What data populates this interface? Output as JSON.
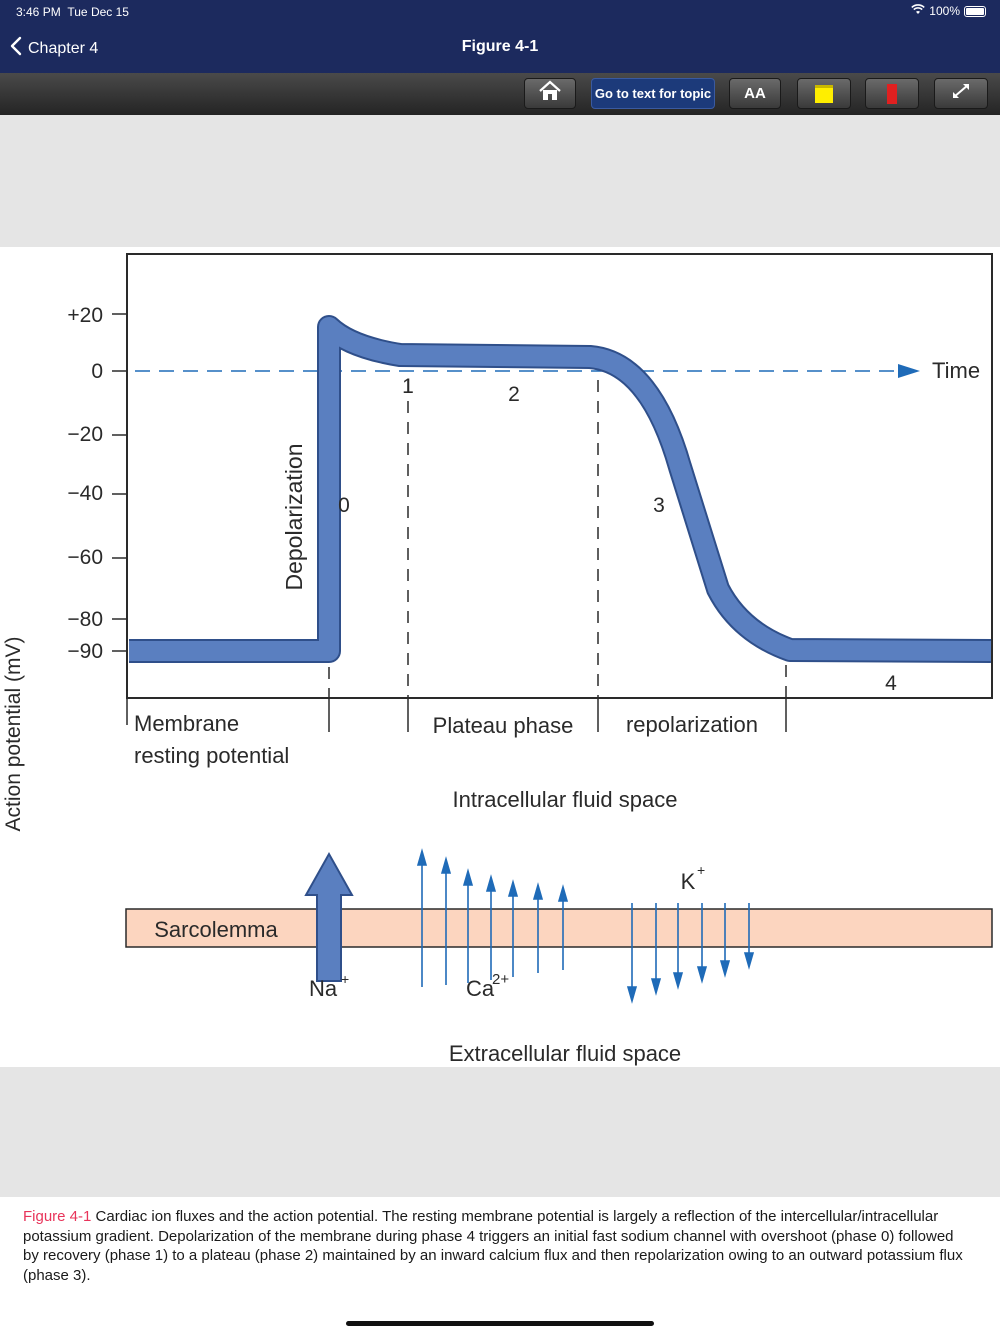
{
  "status": {
    "time": "3:46 PM",
    "date": "Tue Dec 15",
    "battery": "100%"
  },
  "nav": {
    "back_label": "Chapter 4",
    "title": "Figure 4-1"
  },
  "toolbar": {
    "go_to_text": "Go to text for topic",
    "font_size": "AA"
  },
  "figure": {
    "y_axis_label": "Action potential (mV)",
    "y_ticks": [
      "+20",
      "0",
      "−20",
      "−40",
      "−60",
      "−80",
      "−90"
    ],
    "time_label": "Time",
    "phases": [
      "0",
      "1",
      "2",
      "3",
      "4"
    ],
    "depolarization": "Depolarization",
    "membrane_label_1": "Membrane",
    "membrane_label_2": "resting potential",
    "plateau_label": "Plateau phase",
    "repolarization_label": "repolarization",
    "intracellular": "Intracellular fluid space",
    "extracellular": "Extracellular fluid space",
    "sarcolemma": "Sarcolemma",
    "na": "Na",
    "ca": "Ca",
    "k": "K",
    "plus": "+",
    "two_plus": "2+"
  },
  "caption": {
    "label": "Figure 4-1",
    "text": " Cardiac ion fluxes and the action potential. The resting membrane potential is largely a reflection of the intercellular/intracellular potassium gradient. Depolarization of the membrane during phase 4 triggers an initial fast sodium channel with overshoot (phase 0) followed by recovery (phase 1) to a plateau (phase 2) maintained by an inward calcium flux and then repolarization owing to an outward potassium flux (phase 3)."
  },
  "colors": {
    "nav": "#1c2a5e",
    "curve": "#5a7fc0",
    "arrow": "#1f6bb8",
    "sarcolemma": "#fcd5bf",
    "caption_label": "#e8345a"
  }
}
